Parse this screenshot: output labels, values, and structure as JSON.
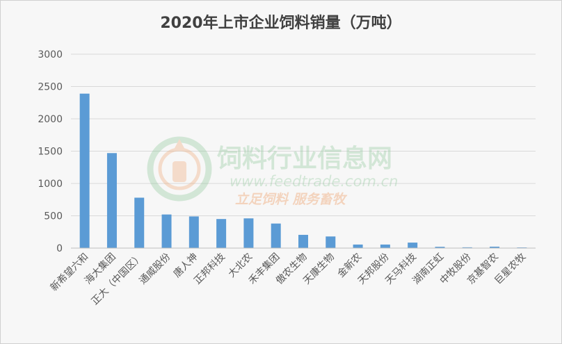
{
  "chart_data": {
    "type": "bar",
    "title": "2020年上市企业饲料销量（万吨）",
    "categories": [
      "新希望六和",
      "海大集团",
      "正大（中国区）",
      "通威股份",
      "唐人神",
      "正邦科技",
      "大北农",
      "禾丰集团",
      "傲农生物",
      "天康生物",
      "金新农",
      "天邦股份",
      "天马科技",
      "湖南正虹",
      "中牧股份",
      "京基智农",
      "巨星农牧"
    ],
    "values": [
      2390,
      1470,
      780,
      520,
      490,
      450,
      460,
      380,
      205,
      180,
      55,
      55,
      85,
      20,
      12,
      22,
      10
    ],
    "ylim": [
      0,
      3000
    ],
    "yticks": [
      0,
      500,
      1000,
      1500,
      2000,
      2500,
      3000
    ],
    "grid": true,
    "bar_color": "#5b9bd5"
  },
  "watermark": {
    "title": "饲料行业信息网",
    "url": "www.feedtrade.com.cn",
    "slogan": "立足饲料    服务畜牧"
  }
}
